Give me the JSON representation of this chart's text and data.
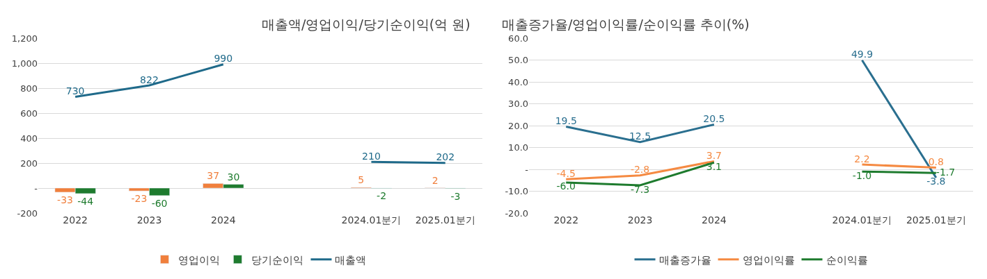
{
  "chart_data": [
    {
      "type": "bar",
      "title": "매출액/영업이익/당기순이익(억 원)",
      "categories": [
        "2022",
        "2023",
        "2024",
        null,
        "2024.01분기",
        "2025.01분기"
      ],
      "series": [
        {
          "name": "영업이익",
          "color": "#f07f3c",
          "values": [
            -33,
            -23,
            37,
            null,
            5,
            2
          ]
        },
        {
          "name": "당기순이익",
          "color": "#1e7b2e",
          "values": [
            -44,
            -60,
            30,
            null,
            -2,
            -3
          ]
        },
        {
          "name": "매출액",
          "type": "line",
          "color": "#1f6a8a",
          "values": [
            730,
            822,
            990,
            null,
            210,
            202
          ]
        }
      ],
      "ylim": [
        -200,
        1200
      ],
      "yticks": [
        {
          "value": -200,
          "label": "-200"
        },
        {
          "value": 0,
          "label": "-"
        },
        200,
        400,
        600,
        800,
        {
          "value": 1000,
          "label": "1,000"
        },
        {
          "value": 1200,
          "label": "1,200"
        }
      ],
      "grid": "y",
      "legend": "bottom",
      "data_labels": true,
      "marker": "none"
    },
    {
      "type": "line",
      "title": "매출증가율/영업이익률/순이익률 추이(%)",
      "categories": [
        "2022",
        "2023",
        "2024",
        null,
        "2024.01분기",
        "2025.01분기"
      ],
      "series": [
        {
          "name": "매출증가율",
          "color": "#2a6f8f",
          "values": [
            19.5,
            12.5,
            20.5,
            null,
            49.9,
            -3.8
          ],
          "value_labels": [
            "19.5",
            "12.5",
            "20.5",
            null,
            "49.9",
            "-3.8"
          ]
        },
        {
          "name": "영업이익률",
          "color": "#f58a42",
          "values": [
            -4.5,
            -2.8,
            3.7,
            null,
            2.2,
            0.8
          ],
          "value_labels": [
            "-4.5",
            "-2.8",
            "3.7",
            null,
            "2.2",
            "0.8"
          ]
        },
        {
          "name": "순이익률",
          "color": "#1e7b2e",
          "values": [
            -6.0,
            -7.3,
            3.1,
            null,
            -1.0,
            -1.7
          ],
          "value_labels": [
            "-6.0",
            "-7.3",
            "3.1",
            null,
            "-1.0",
            "-1.7"
          ]
        }
      ],
      "ylim": [
        -20,
        60
      ],
      "yticks": [
        {
          "value": -20,
          "label": "-20.0"
        },
        {
          "value": -10,
          "label": "-10.0"
        },
        {
          "value": 0,
          "label": "-"
        },
        {
          "value": 10,
          "label": "10.0"
        },
        {
          "value": 20,
          "label": "20.0"
        },
        {
          "value": 30,
          "label": "30.0"
        },
        {
          "value": 40,
          "label": "40.0"
        },
        {
          "value": 50,
          "label": "50.0"
        },
        {
          "value": 60,
          "label": "60.0"
        }
      ],
      "grid": "y",
      "legend": "bottom",
      "marker": "none"
    }
  ]
}
